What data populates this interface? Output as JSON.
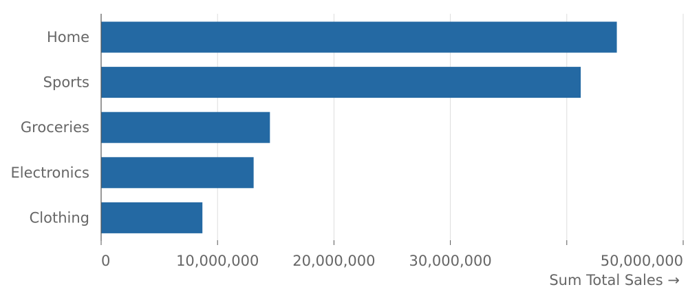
{
  "chart_data": {
    "type": "bar",
    "orientation": "horizontal",
    "categories": [
      "Home",
      "Sports",
      "Groceries",
      "Electronics",
      "Clothing"
    ],
    "values": [
      44300000,
      41200000,
      14500000,
      13100000,
      8700000
    ],
    "xlabel": "Sum Total Sales →",
    "xlim": [
      0,
      50000000
    ],
    "x_ticks": [
      {
        "value": 0,
        "label": "0"
      },
      {
        "value": 10000000,
        "label": "10,000,000"
      },
      {
        "value": 20000000,
        "label": "20,000,000"
      },
      {
        "value": 30000000,
        "label": "30,000,000"
      },
      {
        "value": 40000000,
        "label": ""
      },
      {
        "value": 50000000,
        "label": "50,000,000"
      }
    ],
    "grid": true,
    "bar_color": "#2469a3",
    "grid_color": "#dddddd",
    "axis_color": "#555555",
    "label_color": "#666666"
  }
}
